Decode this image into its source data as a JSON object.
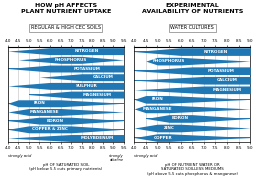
{
  "chart_data": [
    {
      "type": "band",
      "title": "HOW pH AFFECTS\nPLANT NUTRIENT UPTAKE",
      "subtitle": "REGULAR & HIGH CEC SOILS",
      "xlabel": "pH OF SATURATED SOIL\n(pH below 5.5 cuts primary nutrients)",
      "categories": [
        "NITROGEN",
        "PHOSPHORUS",
        "POTASSIUM",
        "CALCIUM",
        "SULPHUR",
        "MAGNESIUM",
        "IRON",
        "MANGANESE",
        "BORON",
        "COPPER & ZINC",
        "MOLYBDENUM"
      ],
      "start": [
        4.0,
        4.5,
        4.0,
        5.5,
        4.0,
        5.0,
        4.0,
        4.0,
        4.0,
        4.0,
        4.0
      ],
      "peak_start": [
        6.0,
        6.5,
        6.0,
        7.5,
        6.0,
        7.0,
        4.5,
        5.0,
        5.5,
        5.0,
        7.0
      ],
      "peak_end": [
        9.5,
        7.5,
        9.5,
        9.5,
        9.5,
        9.5,
        6.5,
        6.5,
        7.0,
        7.0,
        9.5
      ],
      "end": [
        9.5,
        9.5,
        9.5,
        9.5,
        9.5,
        9.5,
        9.5,
        9.5,
        9.5,
        9.5,
        9.5
      ],
      "xlim": [
        4.0,
        9.5
      ],
      "xticks": [
        4.0,
        4.5,
        5.0,
        5.5,
        6.0,
        6.5,
        7.0,
        7.5,
        8.0,
        8.5,
        9.0,
        9.5
      ],
      "grid": true,
      "tick_labels": "x",
      "color": "#1f77b4",
      "annotations": [
        "strongly acid",
        "strongly\nalkaline"
      ]
    },
    {
      "type": "band",
      "title": "EXPERIMENTAL\nAVAILABILITY OF NUTRIENTS",
      "subtitle": "WATER CULTURES",
      "xlabel": "pH OF NUTRIENT WATER OR\nSATURATED SOILLESS MEDIUMS\n(pH above 5.5 cuts phosphorus & manganese)",
      "categories": [
        "NITROGEN",
        "PHOSPHORUS",
        "POTASSIUM",
        "CALCIUM",
        "MAGNESIUM",
        "IRON",
        "MANGANESE",
        "BORON",
        "ZINC",
        "COPPER"
      ],
      "start": [
        4.0,
        4.5,
        4.0,
        4.0,
        4.0,
        4.0,
        4.0,
        4.5,
        4.0,
        4.0
      ],
      "peak_start": [
        6.0,
        5.0,
        6.5,
        7.0,
        7.0,
        4.5,
        4.5,
        5.5,
        5.0,
        5.0
      ],
      "peak_end": [
        9.0,
        6.0,
        9.0,
        9.0,
        9.0,
        5.5,
        5.5,
        6.5,
        6.0,
        5.5
      ],
      "end": [
        9.0,
        9.0,
        9.0,
        9.0,
        9.0,
        9.0,
        9.0,
        9.0,
        9.0,
        9.0
      ],
      "xlim": [
        4.0,
        9.0
      ],
      "xticks": [
        4.0,
        4.5,
        5.0,
        5.5,
        6.0,
        6.5,
        7.0,
        7.5,
        8.0,
        8.5,
        9.0
      ],
      "grid": true,
      "tick_labels": "x",
      "color": "#1f77b4",
      "annotations": [
        "strongly acid"
      ]
    }
  ]
}
